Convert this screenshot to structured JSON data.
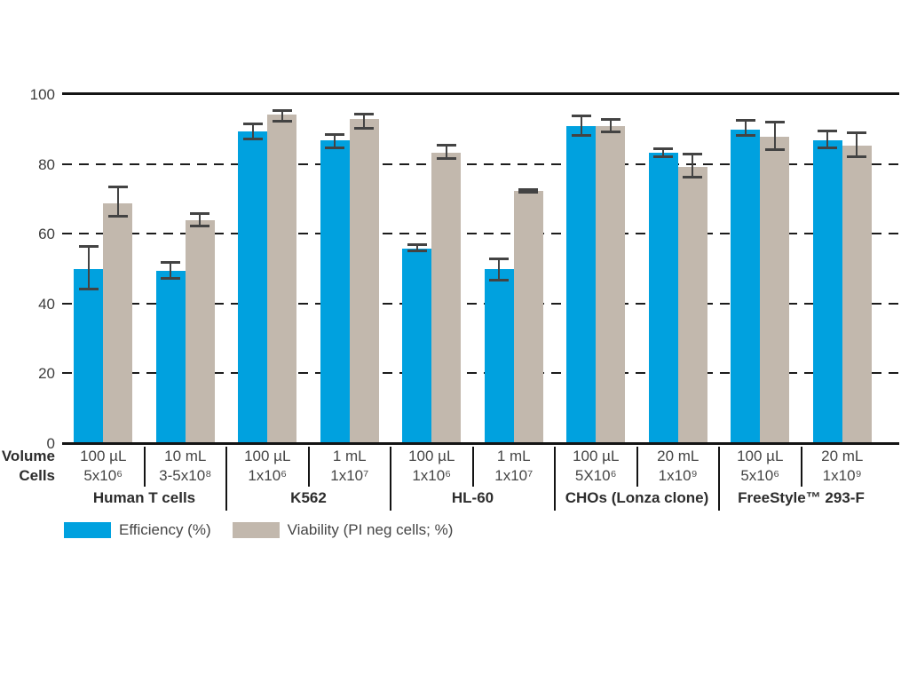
{
  "legend": {
    "items": [
      {
        "label": "Efficiency (%)",
        "color": "#00A1DF"
      },
      {
        "label": "Viability (PI neg cells; %)",
        "color": "#C2B8AD"
      }
    ]
  },
  "x_axis": {
    "row_labels": {
      "volume": "Volume",
      "cells": "Cells"
    }
  },
  "chart_data": {
    "type": "bar",
    "title": "",
    "xlabel": "",
    "ylabel": "",
    "ylim": [
      0,
      100
    ],
    "yticks": [
      0,
      20,
      40,
      60,
      80,
      100
    ],
    "gridlines": {
      "dashed_at": [
        20,
        40,
        60,
        80
      ],
      "solid_at": [
        0,
        100
      ],
      "orientation": "horizontal"
    },
    "legend_position": "bottom-left",
    "error_bars": true,
    "series": [
      {
        "name": "Efficiency (%)",
        "color": "#00A1DF"
      },
      {
        "name": "Viability (PI neg cells; %)",
        "color": "#C2B8AD"
      }
    ],
    "groups": [
      {
        "name": "Human T cells",
        "conditions": [
          {
            "volume": "100 µL",
            "cells": "5x10⁶",
            "efficiency": 49.5,
            "efficiency_err": [
              43.5,
              56.5
            ],
            "viability": 68.5,
            "viability_err": [
              64.5,
              73.5
            ]
          },
          {
            "volume": "10 mL",
            "cells": "3-5x10⁸",
            "efficiency": 49,
            "efficiency_err": [
              46.5,
              52
            ],
            "viability": 63.5,
            "viability_err": [
              61.5,
              66
            ]
          }
        ]
      },
      {
        "name": "K562",
        "conditions": [
          {
            "volume": "100 µL",
            "cells": "1x10⁶",
            "efficiency": 89,
            "efficiency_err": [
              86.5,
              91.5
            ],
            "viability": 94,
            "viability_err": [
              91.5,
              95.5
            ]
          },
          {
            "volume": "1 mL",
            "cells": "1x10⁷",
            "efficiency": 86.5,
            "efficiency_err": [
              84,
              88.5
            ],
            "viability": 92.5,
            "viability_err": [
              89.5,
              94.5
            ]
          }
        ]
      },
      {
        "name": "HL-60",
        "conditions": [
          {
            "volume": "100 µL",
            "cells": "1x10⁶",
            "efficiency": 55.5,
            "efficiency_err": [
              54.5,
              57
            ],
            "viability": 83,
            "viability_err": [
              81,
              85.5
            ]
          },
          {
            "volume": "1 mL",
            "cells": "1x10⁷",
            "efficiency": 49.5,
            "efficiency_err": [
              46,
              53
            ],
            "viability": 72,
            "viability_err": [
              71.3,
              72.7
            ]
          }
        ]
      },
      {
        "name": "CHOs (Lonza clone)",
        "conditions": [
          {
            "volume": "100 µL",
            "cells": "5X10⁶",
            "efficiency": 90.5,
            "efficiency_err": [
              87.5,
              94
            ],
            "viability": 90.5,
            "viability_err": [
              88.5,
              93
            ]
          },
          {
            "volume": "20 mL",
            "cells": "1x10⁹",
            "efficiency": 83,
            "efficiency_err": [
              81.5,
              84.5
            ],
            "viability": 79,
            "viability_err": [
              75.5,
              83
            ]
          }
        ]
      },
      {
        "name": "FreeStyle™ 293-F",
        "conditions": [
          {
            "volume": "100 µL",
            "cells": "5x10⁶",
            "efficiency": 89.5,
            "efficiency_err": [
              87.5,
              92.5
            ],
            "viability": 87.5,
            "viability_err": [
              83.5,
              92
            ]
          },
          {
            "volume": "20 mL",
            "cells": "1x10⁹",
            "efficiency": 86.5,
            "efficiency_err": [
              84,
              89.5
            ],
            "viability": 85,
            "viability_err": [
              81.5,
              89
            ]
          }
        ]
      }
    ]
  }
}
